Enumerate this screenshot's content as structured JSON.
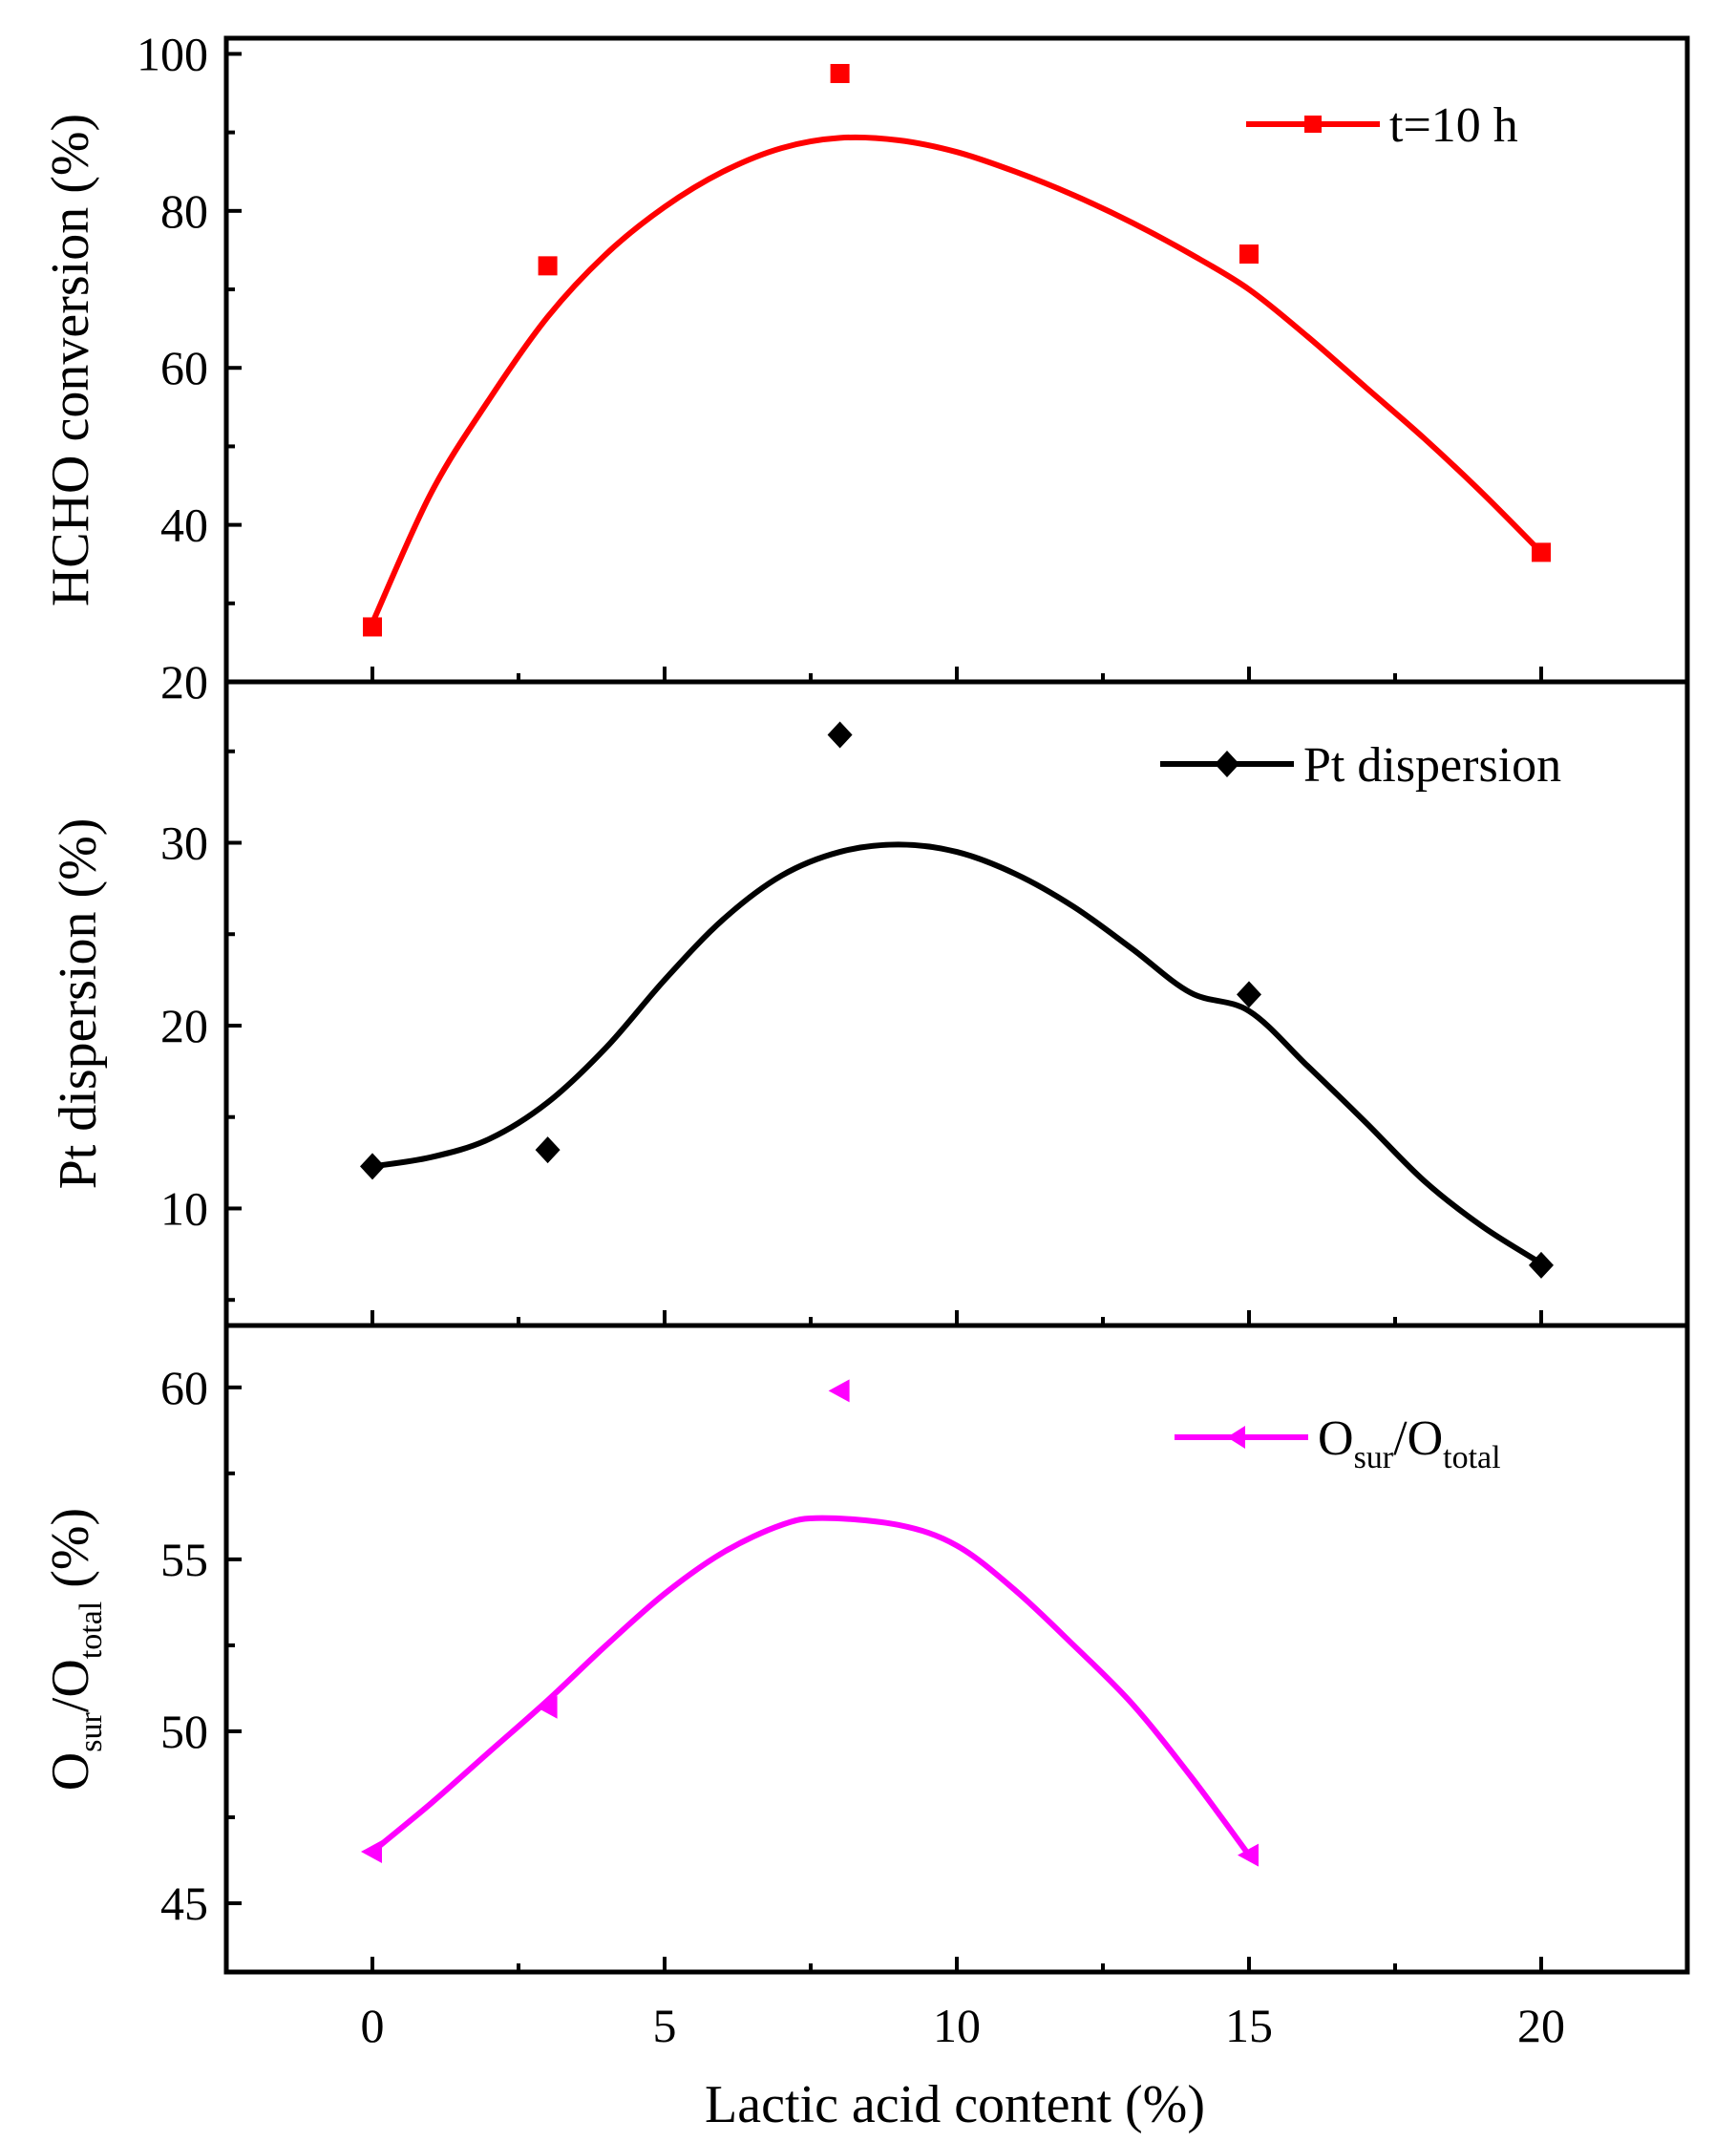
{
  "chart_data": [
    {
      "type": "scatter",
      "panel": "top",
      "ylabel": "HCHO conversion (%)",
      "ylim": [
        20,
        102
      ],
      "yticks": [
        20,
        40,
        60,
        80,
        100
      ],
      "xlim": [
        -2.5,
        22.5
      ],
      "series": [
        {
          "name": "t=10 h",
          "color": "#ff0000",
          "marker": "square",
          "x": [
            0,
            3,
            8,
            15,
            20
          ],
          "y": [
            27,
            73,
            97.5,
            74.5,
            36.5
          ],
          "fit": {
            "x": [
              0,
              1,
              2,
              3,
              4,
              5,
              6,
              7,
              8,
              9,
              10,
              11,
              12,
              13,
              14,
              15,
              16,
              17,
              18,
              19,
              20
            ],
            "y": [
              27.5,
              44,
              56,
              66.5,
              74.5,
              80.5,
              85,
              88,
              89.3,
              89,
              87.5,
              85,
              82,
              78.5,
              74.5,
              70,
              64,
              57.5,
              51,
              44,
              36.5
            ]
          }
        }
      ],
      "legend": {
        "label": "t=10 h",
        "position": "top-right"
      }
    },
    {
      "type": "scatter",
      "panel": "middle",
      "ylabel": "Pt dispersion (%)",
      "ylim": [
        3.6,
        38.8
      ],
      "yticks": [
        10,
        20,
        30
      ],
      "xlim": [
        -2.5,
        22.5
      ],
      "series": [
        {
          "name": "Pt dispersion",
          "color": "#000000",
          "marker": "diamond",
          "x": [
            0,
            3,
            8,
            15,
            20
          ],
          "y": [
            12.3,
            13.2,
            35.9,
            21.7,
            6.9
          ],
          "fit": {
            "x": [
              0,
              1,
              2,
              3,
              4,
              5,
              6,
              7,
              8,
              9,
              10,
              11,
              12,
              13,
              14,
              15,
              16,
              17,
              18,
              19,
              20
            ],
            "y": [
              12.3,
              12.8,
              13.8,
              15.8,
              18.8,
              22.5,
              25.8,
              28.2,
              29.5,
              29.9,
              29.5,
              28.3,
              26.5,
              24.2,
              21.8,
              20.8,
              17.8,
              14.7,
              11.5,
              9.0,
              7.0
            ]
          }
        }
      ],
      "legend": {
        "label": "Pt dispersion",
        "position": "top-right"
      }
    },
    {
      "type": "scatter",
      "panel": "bottom",
      "ylabel": "O_sur/O_total (%)",
      "ylim": [
        43,
        61.8
      ],
      "yticks": [
        45,
        50,
        55,
        60
      ],
      "xlim": [
        -2.5,
        22.5
      ],
      "xlabel": "Lactic acid content (%)",
      "xticks": [
        0,
        5,
        10,
        15,
        20
      ],
      "series": [
        {
          "name": "O_sur/O_total",
          "color": "#ff00ff",
          "marker": "triangle-left",
          "x": [
            0,
            3,
            8,
            15
          ],
          "y": [
            46.5,
            50.7,
            59.9,
            46.4
          ],
          "fit": {
            "x": [
              0,
              1,
              2,
              3,
              4,
              5,
              6,
              7,
              7.7,
              9,
              10,
              11,
              12,
              13,
              14,
              15
            ],
            "y": [
              46.5,
              47.9,
              49.4,
              50.9,
              52.5,
              54.0,
              55.2,
              56.0,
              56.2,
              56.0,
              55.4,
              54.1,
              52.5,
              50.8,
              48.7,
              46.4
            ]
          }
        }
      ],
      "legend": {
        "label_main": "O",
        "label_sub1": "sur",
        "label_slash": "/O",
        "label_sub2": "total",
        "position": "top-right"
      }
    }
  ],
  "axes": {
    "xlabel": "Lactic acid content (%)",
    "xtick_labels": [
      "0",
      "5",
      "10",
      "15",
      "20"
    ],
    "top_ytick_labels": [
      "20",
      "40",
      "60",
      "80",
      "100"
    ],
    "mid_ytick_labels": [
      "10",
      "20",
      "30"
    ],
    "bot_ytick_labels": [
      "45",
      "50",
      "55",
      "60"
    ],
    "top_ylabel": "HCHO conversion (%)",
    "mid_ylabel": "Pt dispersion (%)",
    "bot_ylabel": {
      "main": "O",
      "sub1": "sur",
      "slash": "/O",
      "sub2": "total",
      "tail": " (%)"
    }
  },
  "colors": {
    "red": "#ff0000",
    "black": "#000000",
    "magenta": "#ff00ff"
  }
}
